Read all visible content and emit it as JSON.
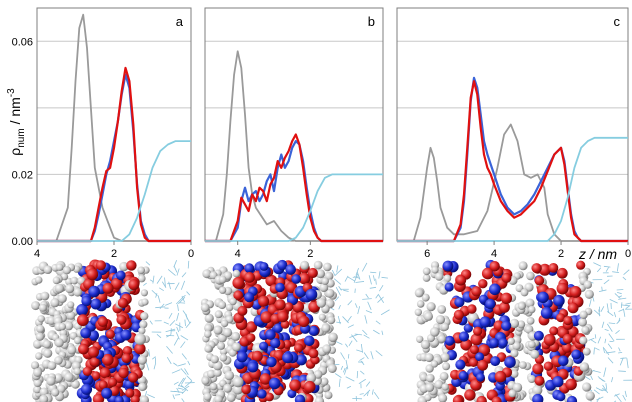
{
  "figure": {
    "y_axis_label_main": "ρ",
    "y_axis_label_sub": "num",
    "y_axis_label_unit": " / nm",
    "y_axis_label_exp": "-3",
    "x_axis_label": "z / nm"
  },
  "colors": {
    "series_gray": "#9a9a9a",
    "series_blue": "#3a63d8",
    "series_red": "#e01010",
    "series_cyan": "#86cde0",
    "gridline": "#c8c8c8",
    "frame": "#7f7f7f",
    "bead_white": "#cfcfcf",
    "bead_red": "#d41f1f",
    "bead_blue": "#1f2fd0",
    "water_lines": "#8fc4dc"
  },
  "chart_data": [
    {
      "type": "line",
      "panel": "a",
      "panel_label": "a",
      "xlim": [
        4,
        0
      ],
      "ylim": [
        0,
        0.07
      ],
      "yticks": [
        0.0,
        0.02,
        0.06
      ],
      "ytick_labels": [
        "0.00",
        "0.02",
        "0.06"
      ],
      "gridlines_y": [
        0.02,
        0.04,
        0.06
      ],
      "xticks": [
        4,
        2,
        0
      ],
      "xtick_labels": [
        "4",
        "2",
        "0"
      ],
      "grid": true,
      "series": [
        {
          "color_key": "series_gray",
          "x": [
            4.0,
            3.5,
            3.2,
            3.1,
            3.0,
            2.9,
            2.8,
            2.7,
            2.6,
            2.5,
            2.3,
            2.1,
            2.0,
            1.8,
            1.5,
            0.0
          ],
          "y": [
            0.0,
            0.0,
            0.01,
            0.028,
            0.048,
            0.064,
            0.068,
            0.058,
            0.04,
            0.022,
            0.01,
            0.004,
            0.001,
            0.0,
            0.0,
            0.0
          ]
        },
        {
          "color_key": "series_blue",
          "x": [
            4.0,
            2.6,
            2.5,
            2.4,
            2.3,
            2.2,
            2.1,
            2.0,
            1.9,
            1.8,
            1.7,
            1.6,
            1.5,
            1.4,
            1.3,
            1.2,
            1.1,
            1.0,
            0.0
          ],
          "y": [
            0.0,
            0.0,
            0.003,
            0.008,
            0.014,
            0.02,
            0.024,
            0.03,
            0.036,
            0.044,
            0.05,
            0.046,
            0.033,
            0.017,
            0.006,
            0.002,
            0.0,
            0.0,
            0.0
          ]
        },
        {
          "color_key": "series_red",
          "x": [
            4.0,
            2.6,
            2.5,
            2.4,
            2.3,
            2.2,
            2.1,
            2.0,
            1.9,
            1.8,
            1.7,
            1.6,
            1.5,
            1.4,
            1.3,
            1.2,
            1.1,
            1.0,
            0.0
          ],
          "y": [
            0.0,
            0.0,
            0.004,
            0.01,
            0.016,
            0.021,
            0.022,
            0.028,
            0.036,
            0.045,
            0.052,
            0.048,
            0.035,
            0.016,
            0.005,
            0.001,
            0.0,
            0.0,
            0.0
          ]
        },
        {
          "color_key": "series_cyan",
          "x": [
            4.0,
            2.0,
            1.8,
            1.6,
            1.4,
            1.2,
            1.0,
            0.8,
            0.6,
            0.4,
            0.2,
            0.0
          ],
          "y": [
            0.0,
            0.0,
            0.0,
            0.002,
            0.007,
            0.014,
            0.022,
            0.027,
            0.029,
            0.03,
            0.03,
            0.03
          ]
        }
      ]
    },
    {
      "type": "line",
      "panel": "b",
      "panel_label": "b",
      "xlim": [
        4.9,
        0
      ],
      "ylim": [
        0,
        0.07
      ],
      "gridlines_y": [
        0.02,
        0.04,
        0.06
      ],
      "xticks": [
        4,
        2
      ],
      "xtick_labels": [
        "4",
        "2"
      ],
      "grid": true,
      "series": [
        {
          "color_key": "series_gray",
          "x": [
            4.9,
            4.6,
            4.4,
            4.3,
            4.2,
            4.1,
            4.0,
            3.9,
            3.8,
            3.7,
            3.6,
            3.5,
            3.2,
            3.0,
            2.8,
            2.6,
            2.4,
            0.0
          ],
          "y": [
            0.0,
            0.0,
            0.008,
            0.02,
            0.036,
            0.05,
            0.057,
            0.052,
            0.038,
            0.022,
            0.014,
            0.01,
            0.005,
            0.006,
            0.003,
            0.001,
            0.0,
            0.0
          ]
        },
        {
          "color_key": "series_blue",
          "x": [
            4.9,
            4.2,
            4.0,
            3.9,
            3.8,
            3.7,
            3.6,
            3.5,
            3.4,
            3.3,
            3.2,
            3.1,
            3.0,
            2.9,
            2.8,
            2.7,
            2.6,
            2.5,
            2.4,
            2.3,
            2.2,
            2.1,
            2.0,
            1.9,
            1.8,
            1.7,
            1.6,
            1.5,
            0.0
          ],
          "y": [
            0.0,
            0.0,
            0.004,
            0.012,
            0.016,
            0.012,
            0.014,
            0.015,
            0.012,
            0.014,
            0.018,
            0.02,
            0.015,
            0.022,
            0.026,
            0.022,
            0.024,
            0.028,
            0.03,
            0.029,
            0.024,
            0.016,
            0.009,
            0.004,
            0.001,
            0.0,
            0.0,
            0.0,
            0.0
          ]
        },
        {
          "color_key": "series_red",
          "x": [
            4.9,
            4.2,
            4.0,
            3.9,
            3.8,
            3.7,
            3.6,
            3.5,
            3.4,
            3.3,
            3.2,
            3.1,
            3.0,
            2.9,
            2.8,
            2.7,
            2.6,
            2.5,
            2.4,
            2.3,
            2.2,
            2.1,
            2.0,
            1.9,
            1.8,
            1.7,
            1.6,
            0.0
          ],
          "y": [
            0.0,
            0.0,
            0.006,
            0.013,
            0.011,
            0.009,
            0.014,
            0.012,
            0.016,
            0.015,
            0.012,
            0.017,
            0.019,
            0.024,
            0.022,
            0.025,
            0.027,
            0.03,
            0.032,
            0.029,
            0.022,
            0.014,
            0.007,
            0.003,
            0.001,
            0.0,
            0.0,
            0.0
          ]
        },
        {
          "color_key": "series_cyan",
          "x": [
            4.9,
            2.6,
            2.4,
            2.2,
            2.0,
            1.8,
            1.6,
            1.4,
            1.2,
            1.0,
            0.8,
            0.0
          ],
          "y": [
            0.0,
            0.0,
            0.001,
            0.004,
            0.009,
            0.015,
            0.019,
            0.02,
            0.02,
            0.02,
            0.02,
            0.02
          ]
        }
      ]
    },
    {
      "type": "line",
      "panel": "c",
      "panel_label": "c",
      "xlim": [
        6.9,
        0
      ],
      "ylim": [
        0,
        0.07
      ],
      "gridlines_y": [
        0.02,
        0.04,
        0.06
      ],
      "xticks": [
        6,
        4,
        2,
        0
      ],
      "xtick_labels": [
        "6",
        "4",
        "2",
        "0"
      ],
      "grid": true,
      "series": [
        {
          "color_key": "series_gray",
          "x": [
            6.9,
            6.4,
            6.2,
            6.0,
            5.9,
            5.8,
            5.7,
            5.6,
            5.4,
            5.2,
            4.9,
            4.5,
            4.2,
            3.9,
            3.7,
            3.5,
            3.3,
            3.1,
            2.9,
            2.7,
            2.5,
            2.4,
            2.2,
            2.0,
            1.8,
            0.0
          ],
          "y": [
            0.0,
            0.0,
            0.007,
            0.022,
            0.028,
            0.025,
            0.018,
            0.01,
            0.004,
            0.002,
            0.002,
            0.003,
            0.009,
            0.022,
            0.032,
            0.035,
            0.03,
            0.02,
            0.019,
            0.02,
            0.016,
            0.008,
            0.002,
            0.0,
            0.0,
            0.0
          ]
        },
        {
          "color_key": "series_blue",
          "x": [
            6.9,
            5.2,
            5.0,
            4.9,
            4.8,
            4.7,
            4.6,
            4.5,
            4.4,
            4.3,
            4.2,
            4.1,
            4.0,
            3.8,
            3.6,
            3.4,
            3.2,
            3.0,
            2.8,
            2.6,
            2.4,
            2.2,
            2.0,
            1.9,
            1.8,
            1.7,
            1.6,
            1.5,
            1.4,
            0.0
          ],
          "y": [
            0.0,
            0.0,
            0.004,
            0.012,
            0.026,
            0.042,
            0.049,
            0.046,
            0.038,
            0.03,
            0.026,
            0.023,
            0.02,
            0.014,
            0.01,
            0.008,
            0.009,
            0.011,
            0.014,
            0.018,
            0.022,
            0.026,
            0.028,
            0.024,
            0.016,
            0.008,
            0.003,
            0.001,
            0.0,
            0.0
          ]
        },
        {
          "color_key": "series_red",
          "x": [
            6.9,
            5.2,
            5.0,
            4.9,
            4.8,
            4.7,
            4.6,
            4.5,
            4.4,
            4.3,
            4.2,
            4.1,
            4.0,
            3.8,
            3.6,
            3.4,
            3.2,
            3.0,
            2.8,
            2.6,
            2.4,
            2.2,
            2.0,
            1.9,
            1.8,
            1.7,
            1.6,
            1.5,
            1.4,
            0.0
          ],
          "y": [
            0.0,
            0.0,
            0.005,
            0.014,
            0.028,
            0.043,
            0.048,
            0.044,
            0.034,
            0.026,
            0.022,
            0.02,
            0.017,
            0.012,
            0.009,
            0.007,
            0.008,
            0.01,
            0.012,
            0.016,
            0.021,
            0.026,
            0.028,
            0.023,
            0.015,
            0.007,
            0.002,
            0.001,
            0.0,
            0.0
          ]
        },
        {
          "color_key": "series_cyan",
          "x": [
            6.9,
            2.4,
            2.2,
            2.0,
            1.8,
            1.6,
            1.4,
            1.2,
            1.0,
            0.8,
            0.6,
            0.4,
            0.0
          ],
          "y": [
            0.0,
            0.0,
            0.002,
            0.006,
            0.013,
            0.022,
            0.028,
            0.03,
            0.031,
            0.031,
            0.031,
            0.031,
            0.031
          ]
        }
      ]
    }
  ]
}
